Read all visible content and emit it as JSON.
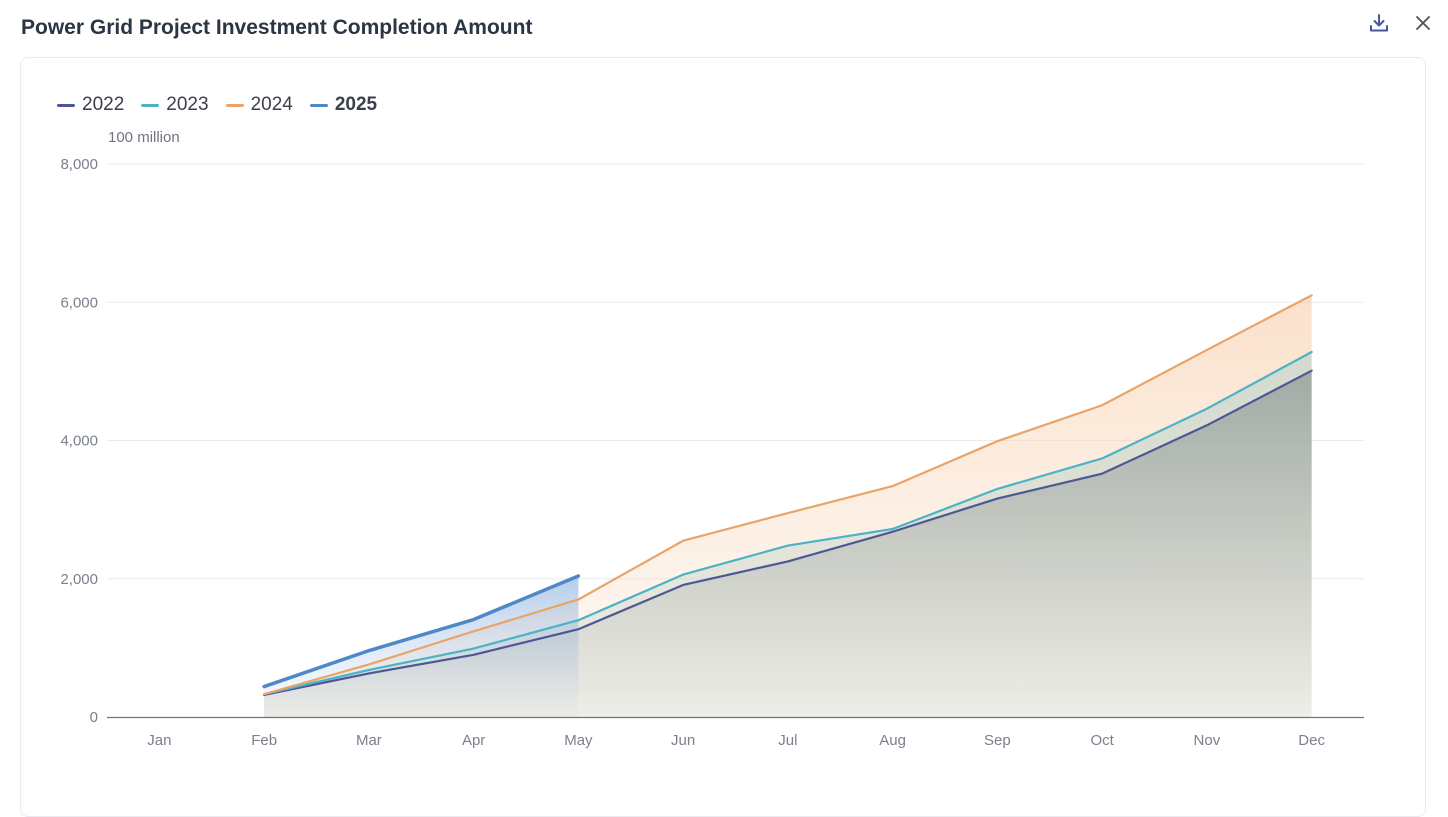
{
  "header": {
    "title": "Power Grid Project Investment Completion Amount",
    "download_icon": "download-icon",
    "close_icon": "close-icon"
  },
  "colors": {
    "2022": "#4e5795",
    "2023": "#4bb3c5",
    "2024": "#e9a46a",
    "2025": "#4f88c8"
  },
  "chart_data": {
    "type": "area",
    "title": "Power Grid Project Investment Completion Amount",
    "ylabel": "100 million",
    "xlabel": "",
    "ylim": [
      0,
      8000
    ],
    "yticks": [
      "0",
      "2,000",
      "4,000",
      "6,000",
      "8,000"
    ],
    "ytick_values": [
      0,
      2000,
      4000,
      6000,
      8000
    ],
    "categories": [
      "Jan",
      "Feb",
      "Mar",
      "Apr",
      "May",
      "Jun",
      "Jul",
      "Aug",
      "Sep",
      "Oct",
      "Nov",
      "Dec"
    ],
    "legend_position": "top-left",
    "grid": true,
    "series": [
      {
        "name": "2022",
        "values": [
          null,
          320,
          630,
          900,
          1270,
          1910,
          2250,
          2680,
          3160,
          3520,
          4220,
          5010
        ]
      },
      {
        "name": "2023",
        "values": [
          null,
          330,
          680,
          990,
          1400,
          2060,
          2480,
          2720,
          3300,
          3740,
          4460,
          5280
        ]
      },
      {
        "name": "2024",
        "values": [
          null,
          330,
          760,
          1240,
          1700,
          2550,
          2950,
          3340,
          3990,
          4510,
          5310,
          6100
        ]
      },
      {
        "name": "2025",
        "values": [
          null,
          440,
          960,
          1410,
          2040,
          null,
          null,
          null,
          null,
          null,
          null,
          null
        ]
      }
    ],
    "highlighted_series": "2025"
  }
}
